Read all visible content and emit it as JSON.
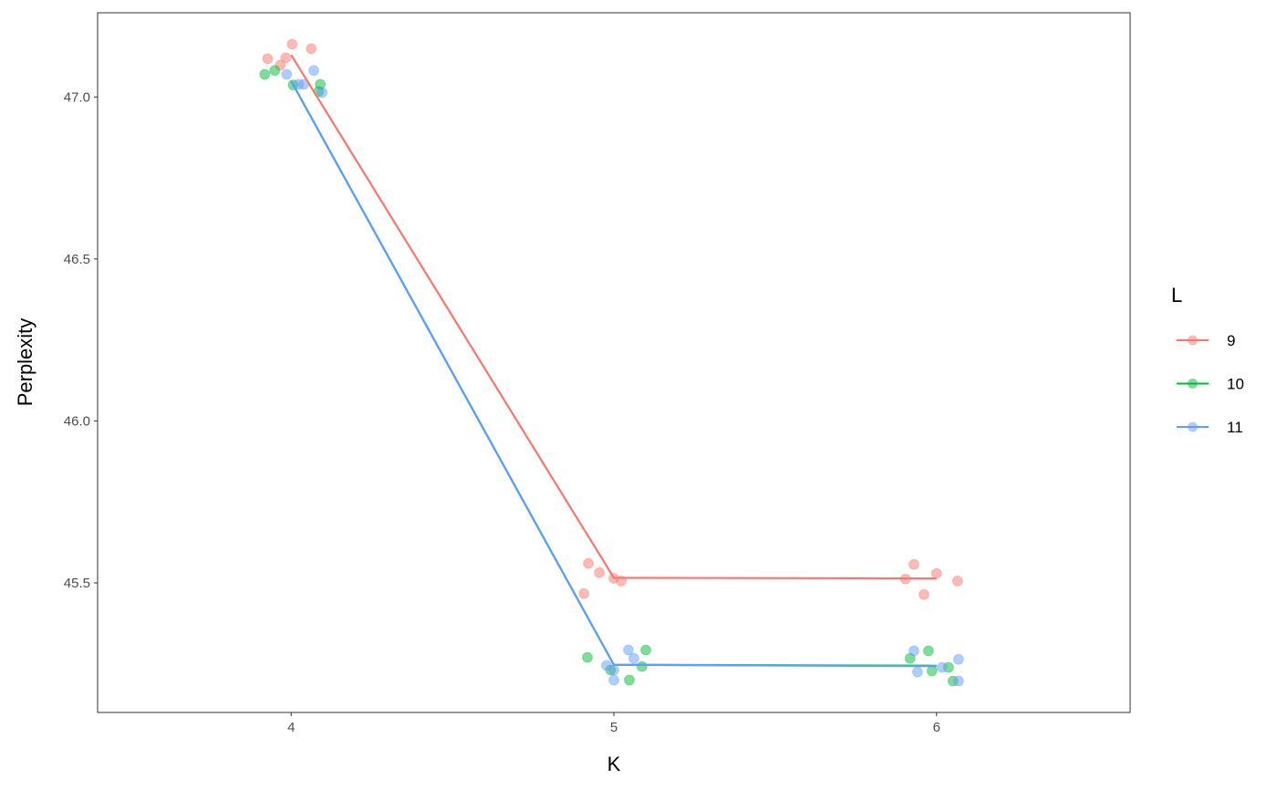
{
  "chart_data": {
    "type": "scatter",
    "title": "",
    "xlabel": "K",
    "ylabel": "Perplexity",
    "xlim": [
      3.4,
      6.6
    ],
    "ylim": [
      45.1,
      47.26
    ],
    "x_ticks": [
      4,
      5,
      6
    ],
    "x_tick_labels": [
      "4",
      "5",
      "6"
    ],
    "y_ticks": [
      45.5,
      46.0,
      46.5,
      47.0
    ],
    "y_tick_labels": [
      "45.5",
      "46.0",
      "46.5",
      "47.0"
    ],
    "grid": false,
    "legend": {
      "title": "L",
      "position": "right"
    },
    "lines": "mean per K, connected",
    "series": [
      {
        "name": "9",
        "color": "#F8766D",
        "points": [
          [
            3.927,
            47.118
          ],
          [
            3.966,
            47.098
          ],
          [
            3.983,
            47.121
          ],
          [
            4.003,
            47.163
          ],
          [
            4.062,
            47.149
          ],
          [
            4.921,
            45.56
          ],
          [
            4.955,
            45.532
          ],
          [
            5.0,
            45.514
          ],
          [
            5.023,
            45.506
          ],
          [
            4.907,
            45.467
          ],
          [
            5.93,
            45.557
          ],
          [
            5.904,
            45.512
          ],
          [
            6.0,
            45.529
          ],
          [
            6.065,
            45.506
          ],
          [
            5.961,
            45.464
          ]
        ]
      },
      {
        "name": "10",
        "color": "#00BA38",
        "points": [
          [
            3.918,
            47.07
          ],
          [
            3.949,
            47.082
          ],
          [
            4.006,
            47.037
          ],
          [
            4.09,
            47.039
          ],
          [
            4.085,
            47.017
          ],
          [
            4.918,
            45.27
          ],
          [
            5.099,
            45.293
          ],
          [
            5.087,
            45.242
          ],
          [
            5.048,
            45.2
          ],
          [
            4.99,
            45.231
          ],
          [
            5.975,
            45.29
          ],
          [
            5.918,
            45.267
          ],
          [
            5.986,
            45.228
          ],
          [
            6.037,
            45.239
          ],
          [
            6.051,
            45.197
          ]
        ]
      },
      {
        "name": "11",
        "color": "#619CFF",
        "points": [
          [
            3.986,
            47.07
          ],
          [
            4.07,
            47.082
          ],
          [
            4.023,
            47.039
          ],
          [
            4.039,
            47.039
          ],
          [
            4.096,
            47.014
          ],
          [
            5.045,
            45.293
          ],
          [
            5.062,
            45.267
          ],
          [
            4.977,
            45.245
          ],
          [
            5.0,
            45.231
          ],
          [
            5.0,
            45.2
          ],
          [
            5.93,
            45.29
          ],
          [
            5.941,
            45.225
          ],
          [
            6.017,
            45.239
          ],
          [
            6.068,
            45.264
          ],
          [
            6.068,
            45.197
          ]
        ]
      }
    ]
  }
}
